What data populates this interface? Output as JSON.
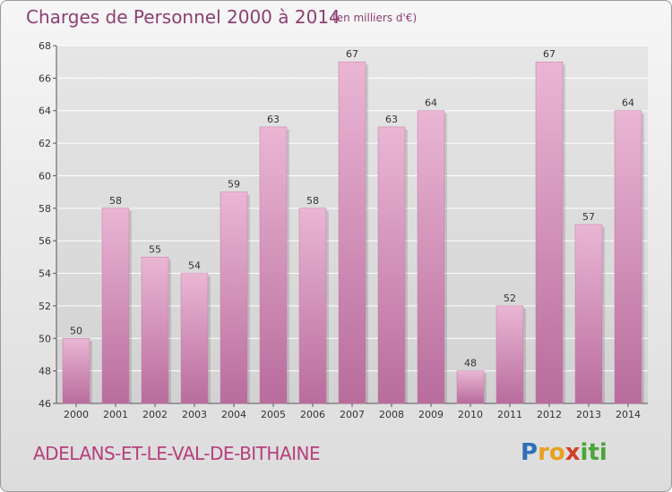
{
  "title": "Charges de Personnel 2000 à 2014",
  "subtitle": "(en milliers d'€)",
  "commune": "ADELANS-ET-LE-VAL-DE-BITHAINE",
  "logo": {
    "letters": [
      {
        "ch": "P",
        "color": "#2f6fb8"
      },
      {
        "ch": "r",
        "color": "#e8a020"
      },
      {
        "ch": "o",
        "color": "#e8a020"
      },
      {
        "ch": "x",
        "color": "#d0402a"
      },
      {
        "ch": "i",
        "color": "#4aa53a"
      },
      {
        "ch": "t",
        "color": "#4aa53a"
      },
      {
        "ch": "i",
        "color": "#4aa53a"
      }
    ]
  },
  "colors": {
    "bar": "#d88cba",
    "bar_light": "#e8b4d3",
    "bar_dark": "#b86a9a",
    "text": "#333333",
    "grid": "#ffffff"
  },
  "chart_data": {
    "type": "bar",
    "categories": [
      "2000",
      "2001",
      "2002",
      "2003",
      "2004",
      "2005",
      "2006",
      "2007",
      "2008",
      "2009",
      "2010",
      "2011",
      "2012",
      "2013",
      "2014"
    ],
    "values": [
      50,
      58,
      55,
      54,
      59,
      63,
      58,
      67,
      63,
      64,
      48,
      52,
      67,
      57,
      64
    ],
    "ylim": [
      46,
      68
    ],
    "yticks": [
      46,
      48,
      50,
      52,
      54,
      56,
      58,
      60,
      62,
      64,
      66,
      68
    ],
    "grid": true,
    "xlabel": "",
    "ylabel": ""
  }
}
